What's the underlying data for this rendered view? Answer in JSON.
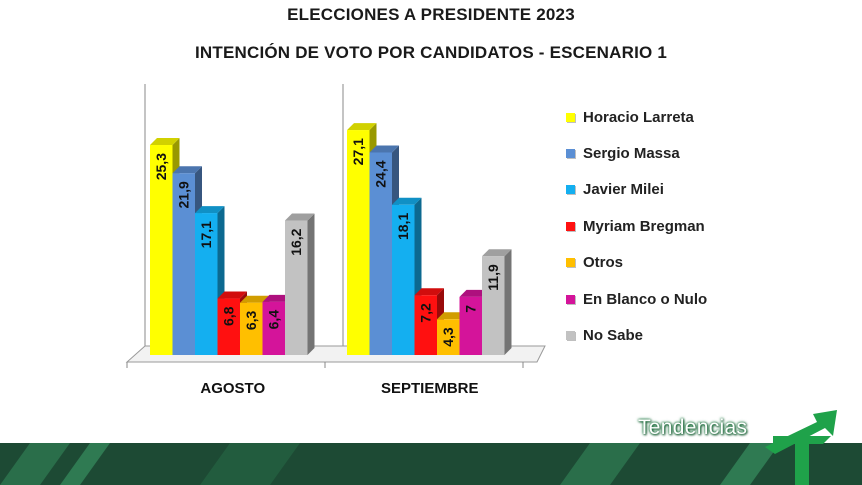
{
  "title": "ELECCIONES A PRESIDENTE 2023",
  "subtitle": "INTENCIÓN DE VOTO POR CANDIDATOS - ESCENARIO 1",
  "brand": "Tendencias",
  "chart_data": {
    "type": "bar",
    "categories": [
      "AGOSTO",
      "SEPTIEMBRE"
    ],
    "ylim": [
      0,
      30
    ],
    "grid": false,
    "legend_position": "right",
    "series": [
      {
        "name": "Horacio Larreta",
        "color": "#ffff00",
        "values": [
          "25,3",
          "27,1"
        ]
      },
      {
        "name": "Sergio Massa",
        "color": "#5b8fd4",
        "values": [
          "21,9",
          "24,4"
        ]
      },
      {
        "name": "Javier Milei",
        "color": "#14aff0",
        "values": [
          "17,1",
          "18,1"
        ]
      },
      {
        "name": "Myriam Bregman",
        "color": "#ff1010",
        "values": [
          "6,8",
          "7,2"
        ]
      },
      {
        "name": "Otros",
        "color": "#ffbf00",
        "values": [
          "6,3",
          "4,3"
        ]
      },
      {
        "name": "En Blanco o Nulo",
        "color": "#d4149a",
        "values": [
          "6,4",
          "7"
        ]
      },
      {
        "name": "No Sabe",
        "color": "#c2c2c2",
        "values": [
          "16,2",
          "11,9"
        ]
      }
    ]
  }
}
